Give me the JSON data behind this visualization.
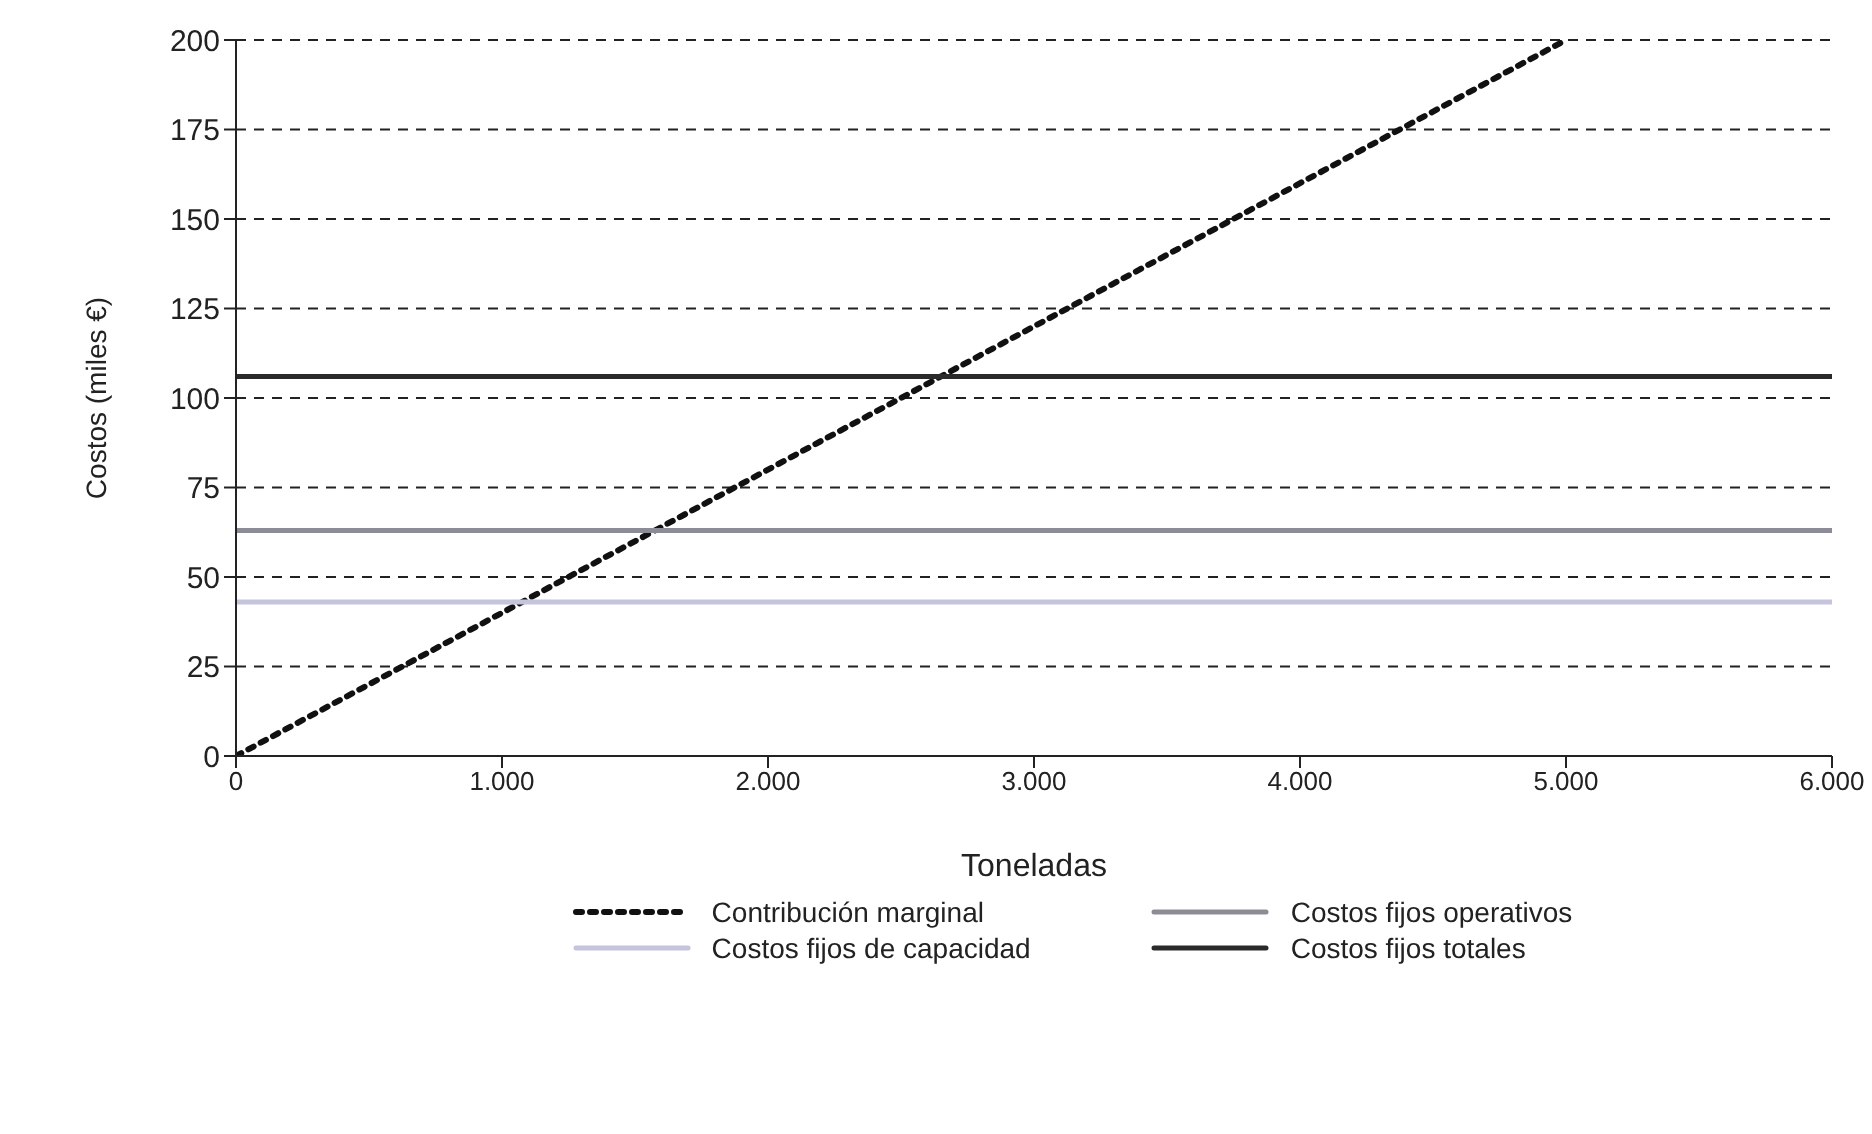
{
  "chart_data": {
    "type": "line",
    "xlabel": "Toneladas",
    "ylabel": "Costos (miles €)",
    "xlim": [
      0,
      6000
    ],
    "xticks": [
      0,
      {
        "value": 1000,
        "label": "1.000"
      },
      {
        "value": 2000,
        "label": "2.000"
      },
      {
        "value": 3000,
        "label": "3.000"
      },
      {
        "value": 4000,
        "label": "4.000"
      },
      {
        "value": 5000,
        "label": "5.000"
      },
      {
        "value": 6000,
        "label": "6.000"
      }
    ],
    "ylim": [
      0,
      200
    ],
    "yticks": [
      0,
      25,
      50,
      75,
      100,
      125,
      150,
      175,
      200
    ],
    "grid": "y",
    "legend": "bottom",
    "marker": "none",
    "series": [
      {
        "name": "Contribución marginal",
        "color": "#111111",
        "line_style": "dotted",
        "x": [
          0,
          5000
        ],
        "values": [
          0,
          200
        ]
      },
      {
        "name": "Costos fijos operativos",
        "color": "#8c8c96",
        "line_style": "solid",
        "x": [
          0,
          6000
        ],
        "values": [
          63,
          63
        ]
      },
      {
        "name": "Costos fijos de capacidad",
        "color": "#c4c4de",
        "line_style": "solid",
        "x": [
          0,
          6000
        ],
        "values": [
          43,
          43
        ]
      },
      {
        "name": "Costos fijos totales",
        "color": "#2a2a2a",
        "line_style": "solid",
        "x": [
          0,
          6000
        ],
        "values": [
          106,
          106
        ]
      }
    ]
  }
}
